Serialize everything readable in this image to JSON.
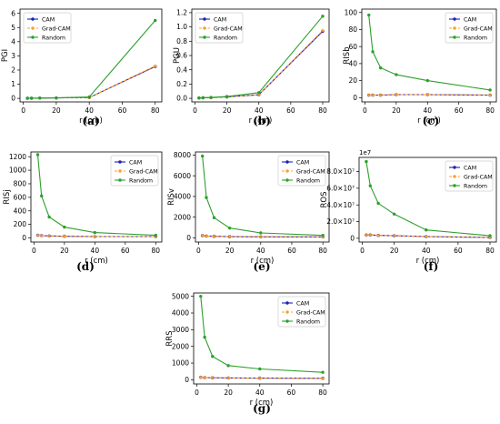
{
  "colors": {
    "CAM": "#1f1fb4",
    "Grad-CAM": "#ff9f2e",
    "Random": "#2ca02c"
  },
  "chart_data": [
    {
      "type": "line",
      "caption": "(a)",
      "xlabel": "r (cm)",
      "ylabel": "PGI",
      "x": [
        2.5,
        5,
        10,
        20,
        40,
        80
      ],
      "xlim": [
        -2,
        84
      ],
      "ylim": [
        -0.25,
        6.3
      ],
      "xticks": [
        0,
        20,
        40,
        60,
        80
      ],
      "yticks": [
        0,
        1,
        2,
        3,
        4,
        5,
        6
      ],
      "yticklabels": [
        "0",
        "1",
        "2",
        "3",
        "4",
        "5",
        "6"
      ],
      "offset_label": "",
      "series": [
        {
          "name": "CAM",
          "values": [
            0.01,
            0.01,
            0.02,
            0.03,
            0.06,
            2.25
          ]
        },
        {
          "name": "Grad-CAM",
          "values": [
            0.01,
            0.01,
            0.02,
            0.03,
            0.06,
            2.28
          ]
        },
        {
          "name": "Random",
          "values": [
            0.01,
            0.01,
            0.02,
            0.03,
            0.1,
            5.5
          ]
        }
      ]
    },
    {
      "type": "line",
      "caption": "(b)",
      "xlabel": "r (cm)",
      "ylabel": "PGU",
      "x": [
        2.5,
        5,
        10,
        20,
        40,
        80
      ],
      "xlim": [
        -2,
        84
      ],
      "ylim": [
        -0.05,
        1.25
      ],
      "xticks": [
        0,
        20,
        40,
        60,
        80
      ],
      "yticks": [
        0,
        0.2,
        0.4,
        0.6,
        0.8,
        1.0,
        1.2
      ],
      "yticklabels": [
        "0.0",
        "0.2",
        "0.4",
        "0.6",
        "0.8",
        "1.0",
        "1.2"
      ],
      "offset_label": "",
      "series": [
        {
          "name": "CAM",
          "values": [
            0.005,
            0.008,
            0.01,
            0.02,
            0.05,
            0.94
          ]
        },
        {
          "name": "Grad-CAM",
          "values": [
            0.005,
            0.008,
            0.01,
            0.02,
            0.05,
            0.95
          ]
        },
        {
          "name": "Random",
          "values": [
            0.005,
            0.008,
            0.012,
            0.025,
            0.08,
            1.15
          ]
        }
      ]
    },
    {
      "type": "line",
      "caption": "(c)",
      "xlabel": "r (cm)",
      "ylabel": "RISb",
      "x": [
        2.5,
        5,
        10,
        20,
        40,
        80
      ],
      "xlim": [
        -2,
        84
      ],
      "ylim": [
        -5,
        104
      ],
      "xticks": [
        0,
        20,
        40,
        60,
        80
      ],
      "yticks": [
        0,
        20,
        40,
        60,
        80,
        100
      ],
      "yticklabels": [
        "0",
        "20",
        "40",
        "60",
        "80",
        "100"
      ],
      "offset_label": "",
      "series": [
        {
          "name": "CAM",
          "values": [
            3,
            3,
            3,
            3.5,
            3.5,
            3
          ]
        },
        {
          "name": "Grad-CAM",
          "values": [
            3,
            3,
            3,
            3.5,
            3.5,
            3
          ]
        },
        {
          "name": "Random",
          "values": [
            97,
            54,
            35,
            27,
            20,
            9
          ]
        }
      ]
    },
    {
      "type": "line",
      "caption": "(d)",
      "xlabel": "r (cm)",
      "ylabel": "RISj",
      "x": [
        2.5,
        5,
        10,
        20,
        40,
        80
      ],
      "xlim": [
        -2,
        84
      ],
      "ylim": [
        -60,
        1270
      ],
      "xticks": [
        0,
        20,
        40,
        60,
        80
      ],
      "yticks": [
        0,
        200,
        400,
        600,
        800,
        1000,
        1200
      ],
      "yticklabels": [
        "0",
        "200",
        "400",
        "600",
        "800",
        "1000",
        "1200"
      ],
      "offset_label": "",
      "series": [
        {
          "name": "CAM",
          "values": [
            40,
            35,
            30,
            25,
            20,
            20
          ]
        },
        {
          "name": "Grad-CAM",
          "values": [
            40,
            35,
            30,
            25,
            20,
            20
          ]
        },
        {
          "name": "Random",
          "values": [
            1230,
            620,
            310,
            160,
            80,
            40
          ]
        }
      ]
    },
    {
      "type": "line",
      "caption": "(e)",
      "xlabel": "r (cm)",
      "ylabel": "RISv",
      "x": [
        2.5,
        5,
        10,
        20,
        40,
        80
      ],
      "xlim": [
        -2,
        84
      ],
      "ylim": [
        -400,
        8300
      ],
      "xticks": [
        0,
        20,
        40,
        60,
        80
      ],
      "yticks": [
        0,
        2000,
        4000,
        6000,
        8000
      ],
      "yticklabels": [
        "0",
        "2000",
        "4000",
        "6000",
        "8000"
      ],
      "offset_label": "",
      "series": [
        {
          "name": "CAM",
          "values": [
            220,
            180,
            150,
            120,
            100,
            90
          ]
        },
        {
          "name": "Grad-CAM",
          "values": [
            220,
            180,
            150,
            120,
            100,
            90
          ]
        },
        {
          "name": "Random",
          "values": [
            7900,
            3900,
            1950,
            950,
            480,
            240
          ]
        }
      ]
    },
    {
      "type": "line",
      "caption": "(f)",
      "xlabel": "r (cm)",
      "ylabel": "ROS",
      "x": [
        2.5,
        5,
        10,
        20,
        40,
        80
      ],
      "xlim": [
        -2,
        84
      ],
      "ylim": [
        -0.45,
        9.7
      ],
      "xticks": [
        0,
        20,
        40,
        60,
        80
      ],
      "yticks": [
        0,
        2,
        4,
        6,
        8
      ],
      "yticklabels": [
        "0",
        "2.0×10⁷",
        "4.0×10⁷",
        "6.0×10⁷",
        "8.0×10⁷"
      ],
      "offset_label": "1e7",
      "series": [
        {
          "name": "CAM",
          "values": [
            0.4,
            0.4,
            0.35,
            0.3,
            0.2,
            0.1
          ]
        },
        {
          "name": "Grad-CAM",
          "values": [
            0.4,
            0.4,
            0.35,
            0.3,
            0.2,
            0.1
          ]
        },
        {
          "name": "Random",
          "values": [
            9.2,
            6.3,
            4.2,
            2.9,
            1.0,
            0.3
          ]
        }
      ]
    },
    {
      "type": "line",
      "caption": "(g)",
      "xlabel": "r (cm)",
      "ylabel": "RRS",
      "x": [
        2.5,
        5,
        10,
        20,
        40,
        80
      ],
      "xlim": [
        -2,
        84
      ],
      "ylim": [
        -250,
        5200
      ],
      "xticks": [
        0,
        20,
        40,
        60,
        80
      ],
      "yticks": [
        0,
        1000,
        2000,
        3000,
        4000,
        5000
      ],
      "yticklabels": [
        "0",
        "1000",
        "2000",
        "3000",
        "4000",
        "5000"
      ],
      "offset_label": "",
      "series": [
        {
          "name": "CAM",
          "values": [
            150,
            130,
            120,
            110,
            100,
            90
          ]
        },
        {
          "name": "Grad-CAM",
          "values": [
            150,
            130,
            120,
            110,
            100,
            90
          ]
        },
        {
          "name": "Random",
          "values": [
            5000,
            2550,
            1400,
            850,
            650,
            450
          ]
        }
      ]
    }
  ]
}
